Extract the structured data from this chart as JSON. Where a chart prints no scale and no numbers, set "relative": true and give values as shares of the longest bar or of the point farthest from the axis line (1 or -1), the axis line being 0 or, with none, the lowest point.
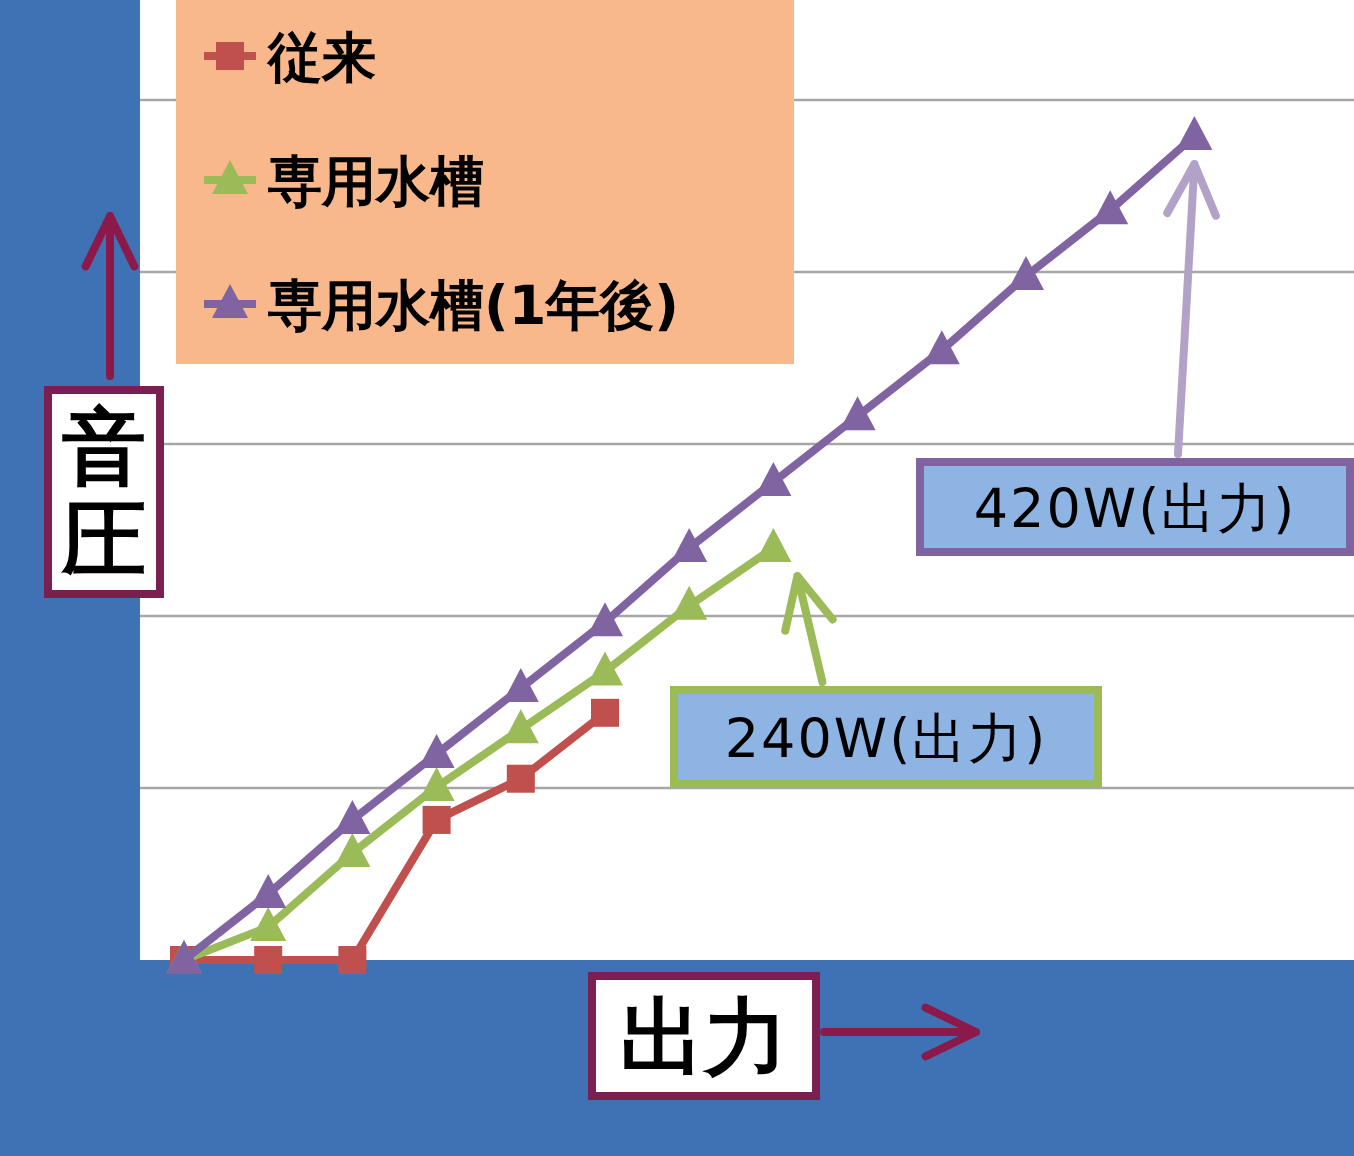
{
  "chart_data": {
    "type": "line",
    "relative": true,
    "xlabel": "出力",
    "ylabel": "音圧",
    "grid": "y",
    "legend": "top left",
    "categories": [
      null,
      null,
      null,
      null,
      null,
      null,
      null,
      null,
      null,
      null,
      null,
      null,
      null
    ],
    "series": [
      {
        "name": "従来",
        "color": "#c0504d",
        "marker": "square",
        "values": [
          0,
          0,
          0,
          0.17,
          0.22,
          0.3,
          null,
          null,
          null,
          null,
          null,
          null,
          null
        ]
      },
      {
        "name": "専用水槽",
        "color": "#9bbb59",
        "marker": "triangle",
        "values": [
          0,
          0.04,
          0.13,
          0.21,
          0.28,
          0.35,
          0.43,
          0.5,
          null,
          null,
          null,
          null,
          null
        ]
      },
      {
        "name": "専用水槽(1年後)",
        "color": "#8064a2",
        "marker": "triangle",
        "values": [
          0,
          0.08,
          0.17,
          0.25,
          0.33,
          0.41,
          0.5,
          0.58,
          0.66,
          0.74,
          0.83,
          0.91,
          1
        ]
      }
    ],
    "annotations": [
      "240W(出力)",
      "420W(出力)"
    ]
  }
}
